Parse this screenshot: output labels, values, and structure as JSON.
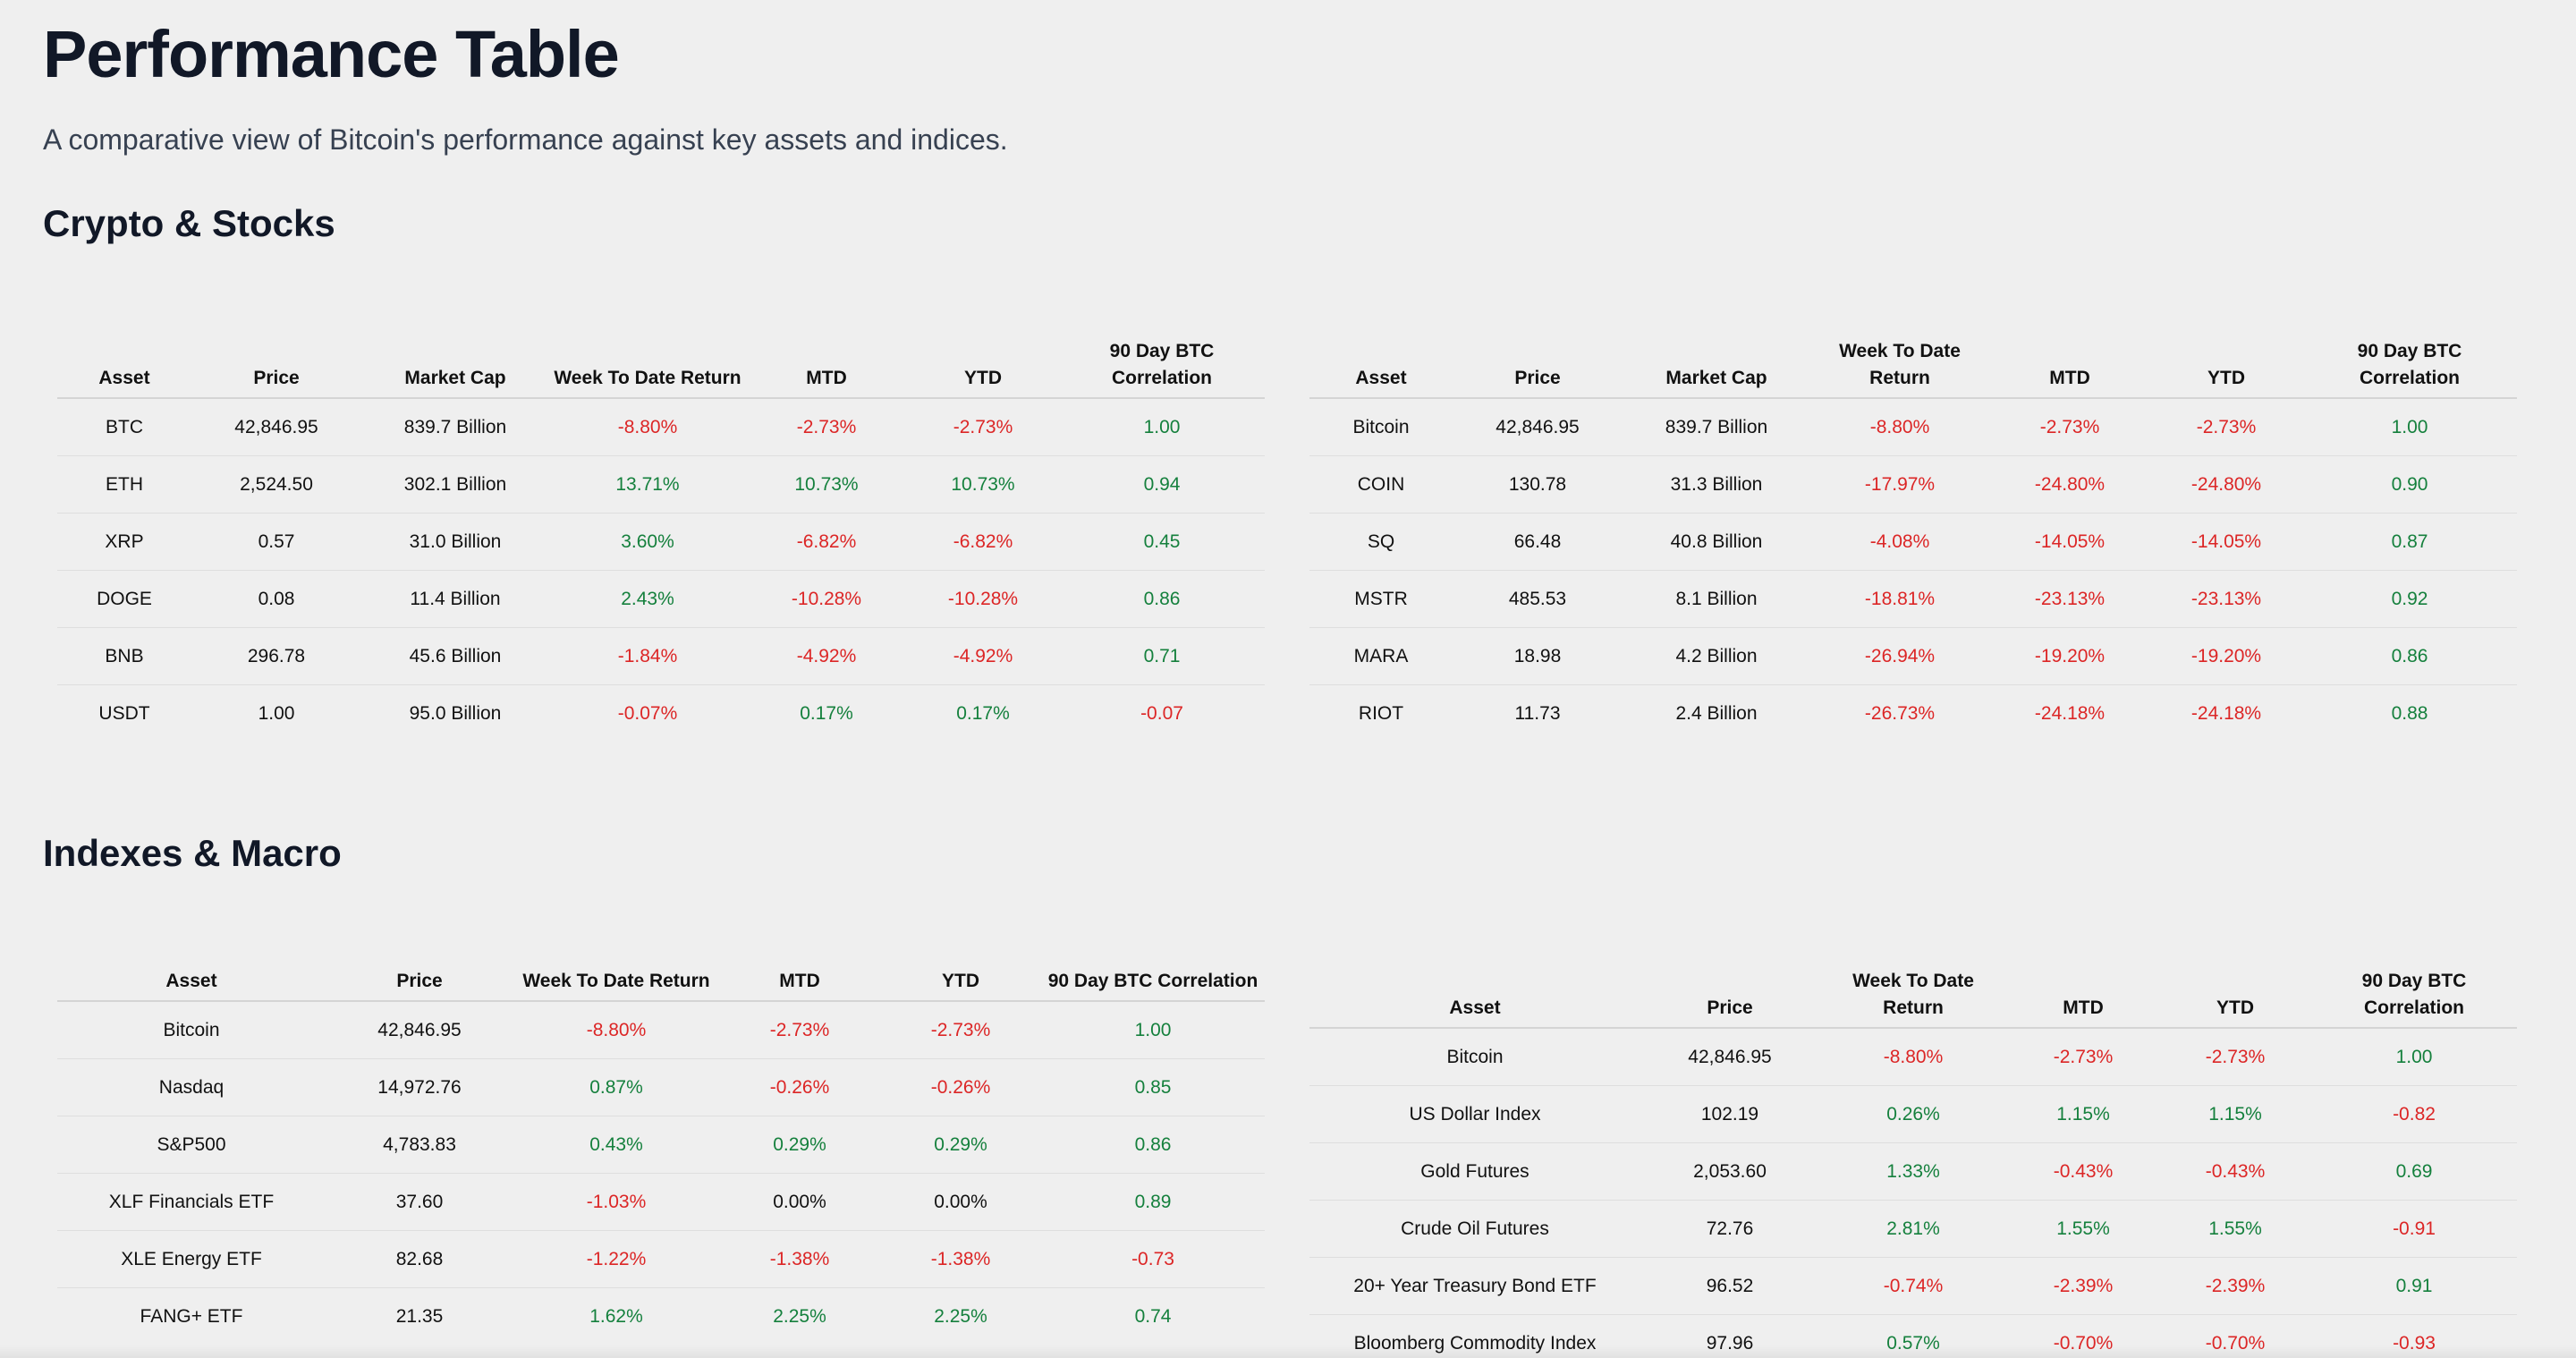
{
  "page": {
    "title": "Performance Table",
    "subtitle": "A comparative view of Bitcoin's performance against key assets and indices."
  },
  "colors": {
    "positive": "#15803d",
    "negative": "#dc2626",
    "background": "#efefef",
    "heading": "#111827"
  },
  "sections": [
    {
      "title": "Crypto & Stocks",
      "tables": [
        {
          "columns": [
            "Asset",
            "Price",
            "Market Cap",
            "Week To Date Return",
            "MTD",
            "YTD",
            "90 Day BTC Correlation"
          ],
          "rows": [
            [
              "BTC",
              "42,846.95",
              "839.7 Billion",
              "-8.80%",
              "-2.73%",
              "-2.73%",
              "1.00"
            ],
            [
              "ETH",
              "2,524.50",
              "302.1 Billion",
              "13.71%",
              "10.73%",
              "10.73%",
              "0.94"
            ],
            [
              "XRP",
              "0.57",
              "31.0 Billion",
              "3.60%",
              "-6.82%",
              "-6.82%",
              "0.45"
            ],
            [
              "DOGE",
              "0.08",
              "11.4 Billion",
              "2.43%",
              "-10.28%",
              "-10.28%",
              "0.86"
            ],
            [
              "BNB",
              "296.78",
              "45.6 Billion",
              "-1.84%",
              "-4.92%",
              "-4.92%",
              "0.71"
            ],
            [
              "USDT",
              "1.00",
              "95.0 Billion",
              "-0.07%",
              "0.17%",
              "0.17%",
              "-0.07"
            ]
          ]
        },
        {
          "columns": [
            "Asset",
            "Price",
            "Market Cap",
            "Week To Date Return",
            "MTD",
            "YTD",
            "90 Day BTC Correlation"
          ],
          "rows": [
            [
              "Bitcoin",
              "42,846.95",
              "839.7 Billion",
              "-8.80%",
              "-2.73%",
              "-2.73%",
              "1.00"
            ],
            [
              "COIN",
              "130.78",
              "31.3 Billion",
              "-17.97%",
              "-24.80%",
              "-24.80%",
              "0.90"
            ],
            [
              "SQ",
              "66.48",
              "40.8 Billion",
              "-4.08%",
              "-14.05%",
              "-14.05%",
              "0.87"
            ],
            [
              "MSTR",
              "485.53",
              "8.1 Billion",
              "-18.81%",
              "-23.13%",
              "-23.13%",
              "0.92"
            ],
            [
              "MARA",
              "18.98",
              "4.2 Billion",
              "-26.94%",
              "-19.20%",
              "-19.20%",
              "0.86"
            ],
            [
              "RIOT",
              "11.73",
              "2.4 Billion",
              "-26.73%",
              "-24.18%",
              "-24.18%",
              "0.88"
            ]
          ]
        }
      ]
    },
    {
      "title": "Indexes & Macro",
      "tables": [
        {
          "columns": [
            "Asset",
            "Price",
            "Week To Date Return",
            "MTD",
            "YTD",
            "90 Day BTC Correlation"
          ],
          "rows": [
            [
              "Bitcoin",
              "42,846.95",
              "-8.80%",
              "-2.73%",
              "-2.73%",
              "1.00"
            ],
            [
              "Nasdaq",
              "14,972.76",
              "0.87%",
              "-0.26%",
              "-0.26%",
              "0.85"
            ],
            [
              "S&P500",
              "4,783.83",
              "0.43%",
              "0.29%",
              "0.29%",
              "0.86"
            ],
            [
              "XLF Financials ETF",
              "37.60",
              "-1.03%",
              "0.00%",
              "0.00%",
              "0.89"
            ],
            [
              "XLE Energy ETF",
              "82.68",
              "-1.22%",
              "-1.38%",
              "-1.38%",
              "-0.73"
            ],
            [
              "FANG+ ETF",
              "21.35",
              "1.62%",
              "2.25%",
              "2.25%",
              "0.74"
            ]
          ]
        },
        {
          "columns": [
            "Asset",
            "Price",
            "Week To Date Return",
            "MTD",
            "YTD",
            "90 Day BTC Correlation"
          ],
          "rows": [
            [
              "Bitcoin",
              "42,846.95",
              "-8.80%",
              "-2.73%",
              "-2.73%",
              "1.00"
            ],
            [
              "US Dollar Index",
              "102.19",
              "0.26%",
              "1.15%",
              "1.15%",
              "-0.82"
            ],
            [
              "Gold Futures",
              "2,053.60",
              "1.33%",
              "-0.43%",
              "-0.43%",
              "0.69"
            ],
            [
              "Crude Oil Futures",
              "72.76",
              "2.81%",
              "1.55%",
              "1.55%",
              "-0.91"
            ],
            [
              "20+ Year Treasury Bond ETF",
              "96.52",
              "-0.74%",
              "-2.39%",
              "-2.39%",
              "0.91"
            ],
            [
              "Bloomberg Commodity Index",
              "97.96",
              "0.57%",
              "-0.70%",
              "-0.70%",
              "-0.93"
            ]
          ]
        }
      ]
    }
  ]
}
